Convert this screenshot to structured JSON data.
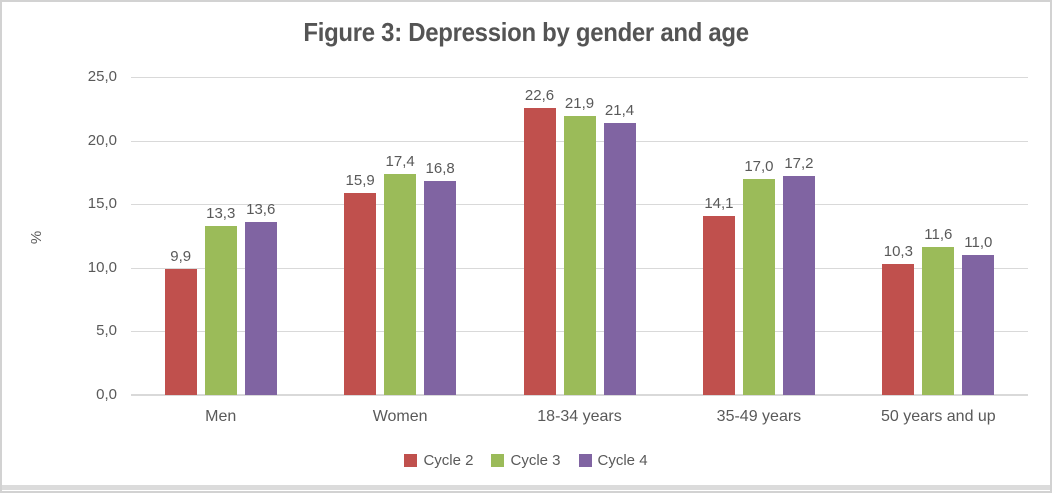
{
  "chart_data": {
    "type": "bar",
    "title": "Figure 3: Depression by gender and age",
    "xlabel": "",
    "ylabel": "%",
    "ylim": [
      0,
      25
    ],
    "ytick_step": 5,
    "yticks": [
      "0,0",
      "5,0",
      "10,0",
      "15,0",
      "20,0",
      "25,0"
    ],
    "decimal_separator": ",",
    "grid": true,
    "grid_color": "#d9d9d9",
    "text_color": "#595959",
    "data_labels": true,
    "legend_position": "bottom",
    "categories": [
      "Men",
      "Women",
      "18-34 years",
      "35-49 years",
      "50 years and up"
    ],
    "series": [
      {
        "name": "Cycle 2",
        "color": "#C0504D",
        "values": [
          9.9,
          15.9,
          22.6,
          14.1,
          10.3
        ]
      },
      {
        "name": "Cycle 3",
        "color": "#9BBB59",
        "values": [
          13.3,
          17.4,
          21.9,
          17.0,
          11.6
        ]
      },
      {
        "name": "Cycle 4",
        "color": "#8064A2",
        "values": [
          13.6,
          16.8,
          21.4,
          17.2,
          11.0
        ]
      }
    ]
  }
}
